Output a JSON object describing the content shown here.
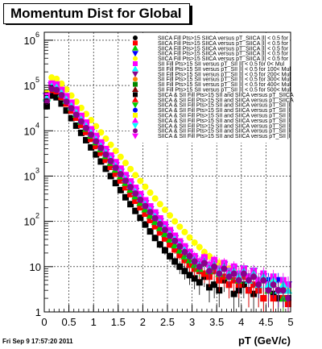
{
  "title": "Momentum Dist for Global",
  "timestamp": "Fri Sep  9 17:57:20 2011",
  "chart_data": {
    "type": "scatter",
    "title": "Momentum Dist for Global",
    "xlabel": "pT (GeV/c)",
    "ylabel": "",
    "xlim": [
      0,
      5
    ],
    "ylim": [
      1,
      1500000
    ],
    "y_scale": "log",
    "grid": true,
    "x_ticks": [
      "0",
      "0.5",
      "1",
      "1.5",
      "2",
      "2.5",
      "3",
      "3.5",
      "4",
      "4.5",
      "5"
    ],
    "y_ticks": [
      "1",
      "10",
      "10",
      "10",
      "10",
      "10",
      "10"
    ],
    "y_tick_exponents": [
      "",
      "",
      "2",
      "3",
      "4",
      "5",
      "6"
    ],
    "legend_position": "top-right",
    "legend": [
      {
        "label": "SIICA Fill Pts>15 SIICA versus pT_SIICA |l| < 0.5 for",
        "color": "#000000",
        "marker": "circle"
      },
      {
        "label": "SIICA Fill Pts>15 SIICA versus pT_SIICA |l| < 0.5 for",
        "color": "#ff0000",
        "marker": "square"
      },
      {
        "label": "SIICA Fill Pts>15 SIICA versus pT_SIICA |l| < 0.5 for",
        "color": "#00cc00",
        "marker": "triangle-up"
      },
      {
        "label": "SIICA Fill Pts>15 SIICA versus pT_SIICA |l| < 0.5 for",
        "color": "#0000ff",
        "marker": "triangle-down"
      },
      {
        "label": "SIICA Fill Pts>15 SIICA versus pT_SIICA |l| < 0.5 for",
        "color": "#ffff00",
        "marker": "circle"
      },
      {
        "label": "SII Fill Pts>15 SII versus pT_SII |l| < 0.5 for 0< Mul",
        "color": "#ff00ff",
        "marker": "square"
      },
      {
        "label": "SII Fill Pts>15 SII versus pT_SII |l| < 0.5 for 100< Mul",
        "color": "#00ffff",
        "marker": "triangle-up"
      },
      {
        "label": "SII Fill Pts>15 SII versus pT_SII |l| < 0.5 for 200< Mul",
        "color": "#8b008b",
        "marker": "triangle-down"
      },
      {
        "label": "SII Fill Pts>15 SII versus pT_SII |l| < 0.5 for 300< Mul",
        "color": "#ff8800",
        "marker": "circle"
      },
      {
        "label": "SII Fill Pts>15 SII versus pT_SII |l| < 0.5 for 400< Mul",
        "color": "#008800",
        "marker": "square"
      },
      {
        "label": "SII Fill Pts>15 SII versus pT_SII |l| < 0.5 for 500< Mul",
        "color": "#880000",
        "marker": "triangle-up"
      },
      {
        "label": "SIICA & SII Fill Pts>15 SII and SIICA versus pT_SIICA",
        "color": "#000000",
        "marker": "square"
      },
      {
        "label": "SIICA & SII Fill Pts>15 SII and SIICA versus pT_SIICA",
        "color": "#ff0000",
        "marker": "triangle-up"
      },
      {
        "label": "SIICA & SII Fill Pts>15 SII and SIICA versus pT_SII |l|",
        "color": "#00cc00",
        "marker": "triangle-down"
      },
      {
        "label": "SIICA & SII Fill Pts>15 SII and SIICA versus pT_SII |l|",
        "color": "#0000ff",
        "marker": "circle"
      },
      {
        "label": "SIICA & SII Fill Pts>15 SII and SIICA versus pT_SII |l|",
        "color": "#ffff00",
        "marker": "square"
      },
      {
        "label": "SIICA & SII Fill Pts>15 SII and SIICA versus pT_SII |l|",
        "color": "#ff00ff",
        "marker": "triangle-up"
      },
      {
        "label": "SIICA & SII Fill Pts>15 SII and SIICA versus pT_SII |l|",
        "color": "#00ffff",
        "marker": "triangle-down"
      },
      {
        "label": "SIICA & SII Fill Pts>15 SII and SIICA versus pT_SII |l|",
        "color": "#8b008b",
        "marker": "circle"
      },
      {
        "label": "SIICA & SII Fill Pts>15 SII and SIICA versus pT_SII |l|",
        "color": "#ff00ff",
        "marker": "triangle-down"
      }
    ],
    "series": [
      {
        "color": "#000000",
        "marker": "square",
        "x": [
          0.05,
          0.15,
          0.25,
          0.35,
          0.45,
          0.55,
          0.65,
          0.75,
          0.85,
          0.95,
          1.05,
          1.15,
          1.25,
          1.35,
          1.45,
          1.55,
          1.65,
          1.75,
          1.85,
          1.95,
          2.05,
          2.15,
          2.25,
          2.35,
          2.45,
          2.55,
          2.65,
          2.75,
          2.85,
          2.95,
          3.05,
          3.15,
          3.25,
          3.35,
          3.45,
          3.55,
          3.65,
          3.75,
          3.85,
          3.95,
          4.05,
          4.15,
          4.25,
          4.35,
          4.45,
          4.55,
          4.65,
          4.75,
          4.85,
          4.95
        ],
        "y": [
          35000,
          60000,
          55000,
          40000,
          28000,
          19000,
          13000,
          9000,
          6200,
          4300,
          3000,
          2100,
          1450,
          1000,
          700,
          490,
          340,
          240,
          170,
          120,
          85,
          60,
          43,
          31,
          23,
          17,
          13,
          10,
          8,
          6.5,
          5.5,
          4.5,
          6,
          3.5,
          4,
          3,
          5,
          4,
          2.5,
          3,
          4,
          3,
          2.5,
          3,
          2,
          3,
          2.5,
          2,
          3,
          2
        ]
      },
      {
        "color": "#ff0000",
        "marker": "square",
        "x": [
          0.05,
          0.15,
          0.25,
          0.35,
          0.45,
          0.55,
          0.65,
          0.75,
          0.85,
          0.95,
          1.05,
          1.15,
          1.25,
          1.35,
          1.45,
          1.55,
          1.65,
          1.75,
          1.85,
          1.95,
          2.05,
          2.15,
          2.25,
          2.35,
          2.45,
          2.55,
          2.65,
          2.75,
          2.85,
          2.95,
          3.05,
          3.15,
          3.25,
          3.35,
          3.45,
          3.55,
          3.65,
          3.75,
          3.85,
          3.95,
          4.05,
          4.15,
          4.25,
          4.35,
          4.45,
          4.55,
          4.65,
          4.75,
          4.85,
          4.95
        ],
        "y": [
          50000,
          80000,
          75000,
          56000,
          40000,
          28000,
          19500,
          13500,
          9400,
          6600,
          4600,
          3250,
          2280,
          1600,
          1130,
          800,
          565,
          400,
          285,
          205,
          148,
          107,
          78,
          57,
          42,
          31,
          24,
          18,
          14,
          11,
          9,
          8,
          7,
          6,
          8,
          5,
          6,
          4,
          5,
          4,
          6,
          3,
          4,
          3,
          2,
          4,
          2,
          3,
          2,
          1.5
        ]
      },
      {
        "color": "#00cc00",
        "marker": "triangle-up",
        "x": [
          0.05,
          0.15,
          0.25,
          0.35,
          0.45,
          0.55,
          0.65,
          0.75,
          0.85,
          0.95,
          1.05,
          1.15,
          1.25,
          1.35,
          1.45,
          1.55,
          1.65,
          1.75,
          1.85,
          1.95,
          2.05,
          2.15,
          2.25,
          2.35,
          2.45,
          2.55,
          2.65,
          2.75,
          2.85,
          2.95,
          3.05,
          3.15,
          3.25,
          3.35,
          3.45,
          3.55,
          3.65,
          3.75,
          3.85,
          3.95,
          4.05,
          4.15,
          4.25,
          4.35,
          4.45,
          4.55,
          4.65,
          4.75,
          4.85,
          4.95
        ],
        "y": [
          55000,
          90000,
          85000,
          64000,
          46000,
          32500,
          23000,
          16000,
          11200,
          7900,
          5600,
          3950,
          2800,
          1980,
          1400,
          1000,
          710,
          505,
          360,
          258,
          186,
          135,
          98,
          72,
          53,
          40,
          30,
          23,
          17,
          14,
          11,
          9,
          12,
          8,
          10,
          7,
          9,
          6,
          8,
          5,
          7,
          5,
          6,
          4,
          5,
          3,
          4,
          3,
          2,
          3
        ]
      },
      {
        "color": "#0000ff",
        "marker": "triangle-down",
        "x": [
          0.05,
          0.15,
          0.25,
          0.35,
          0.45,
          0.55,
          0.65,
          0.75,
          0.85,
          0.95,
          1.05,
          1.15,
          1.25,
          1.35,
          1.45,
          1.55,
          1.65,
          1.75,
          1.85,
          1.95,
          2.05,
          2.15,
          2.25,
          2.35,
          2.45,
          2.55,
          2.65,
          2.75,
          2.85,
          2.95,
          3.05,
          3.15,
          3.25,
          3.35,
          3.45,
          3.55,
          3.65,
          3.75,
          3.85,
          3.95,
          4.05,
          4.15,
          4.25,
          4.35,
          4.45,
          4.55,
          4.65,
          4.75,
          4.85,
          4.95
        ],
        "y": [
          58000,
          100000,
          95000,
          72000,
          52000,
          37000,
          26500,
          18700,
          13200,
          9300,
          6600,
          4700,
          3350,
          2390,
          1710,
          1230,
          885,
          640,
          465,
          340,
          248,
          182,
          134,
          99,
          74,
          55,
          42,
          32,
          25,
          19,
          15,
          12,
          14,
          10,
          12,
          9,
          11,
          8,
          9,
          7,
          9,
          6,
          8,
          5,
          6,
          5,
          4,
          5,
          3,
          4
        ]
      },
      {
        "color": "#ffff00",
        "marker": "circle",
        "x": [
          0.05,
          0.15,
          0.25,
          0.35,
          0.45,
          0.55,
          0.65,
          0.75,
          0.85,
          0.95,
          1.05,
          1.15,
          1.25,
          1.35,
          1.45,
          1.55,
          1.65,
          1.75,
          1.85,
          1.95,
          2.05,
          2.15,
          2.25,
          2.35,
          2.45,
          2.55,
          2.65,
          2.75,
          2.85,
          2.95,
          3.05,
          3.15,
          3.25,
          3.35,
          3.45,
          3.55,
          3.65,
          3.75,
          3.85,
          3.95,
          4.05,
          4.15,
          4.25,
          4.35,
          4.45,
          4.55,
          4.65,
          4.75,
          4.85,
          4.95
        ],
        "y": [
          70000,
          150000,
          140000,
          110000,
          82000,
          60000,
          44000,
          32000,
          23500,
          17200,
          12600,
          9200,
          6700,
          4900,
          3600,
          2650,
          1950,
          1430,
          1050,
          780,
          580,
          430,
          320,
          240,
          180,
          135,
          100,
          76,
          58,
          44,
          34,
          27,
          21,
          17,
          14,
          12,
          10,
          9,
          8,
          7,
          9,
          6,
          7,
          5,
          6,
          4,
          5,
          3,
          4,
          3
        ]
      },
      {
        "color": "#ff00ff",
        "marker": "square",
        "x": [
          0.05,
          0.15,
          0.25,
          0.35,
          0.45,
          0.55,
          0.65,
          0.75,
          0.85,
          0.95,
          1.05,
          1.15,
          1.25,
          1.35,
          1.45,
          1.55,
          1.65,
          1.75,
          1.85,
          1.95,
          2.05,
          2.15,
          2.25,
          2.35,
          2.45,
          2.55,
          2.65,
          2.75,
          2.85,
          2.95,
          3.05,
          3.15,
          3.25,
          3.35,
          3.45,
          3.55,
          3.65,
          3.75,
          3.85,
          3.95,
          4.05,
          4.15,
          4.25,
          4.35,
          4.45,
          4.55,
          4.65,
          4.75,
          4.85,
          4.95
        ],
        "y": [
          60000,
          110000,
          105000,
          80000,
          58000,
          41500,
          29800,
          21300,
          15200,
          10800,
          7700,
          5500,
          3950,
          2830,
          2030,
          1460,
          1050,
          760,
          550,
          400,
          292,
          214,
          157,
          116,
          86,
          64,
          48,
          36,
          28,
          21,
          17,
          13,
          16,
          11,
          14,
          9,
          12,
          8,
          10,
          7,
          9,
          6,
          8,
          5,
          7,
          4,
          6,
          3,
          5,
          4
        ]
      },
      {
        "color": "#00ffff",
        "marker": "triangle-up",
        "x": [
          0.05,
          0.15,
          0.25,
          0.35,
          0.45,
          0.55,
          0.65,
          0.75,
          0.85,
          0.95,
          1.05,
          1.15,
          1.25,
          1.35,
          1.45,
          1.55,
          1.65,
          1.75,
          1.85,
          1.95,
          2.05,
          2.15,
          2.25,
          2.35,
          2.45,
          2.55,
          2.65,
          2.75,
          2.85,
          2.95,
          3.05,
          3.15,
          3.25,
          3.35,
          3.45,
          3.55,
          3.65,
          3.75,
          3.85,
          3.95,
          4.05,
          4.15,
          4.25,
          4.35,
          4.45,
          4.55,
          4.65,
          4.75,
          4.85,
          4.95
        ],
        "y": [
          52000,
          95000,
          90000,
          68000,
          49000,
          35000,
          25000,
          17800,
          12700,
          9000,
          6400,
          4560,
          3250,
          2320,
          1660,
          1190,
          855,
          615,
          445,
          323,
          236,
          173,
          127,
          94,
          70,
          52,
          40,
          30,
          23,
          18,
          14,
          11,
          13,
          9,
          11,
          8,
          10,
          7,
          8,
          6,
          8,
          5,
          7,
          4,
          6,
          4,
          5,
          3,
          4,
          3
        ]
      },
      {
        "color": "#8b008b",
        "marker": "circle",
        "x": [
          0.05,
          0.15,
          0.25,
          0.35,
          0.45,
          0.55,
          0.65,
          0.75,
          0.85,
          0.95,
          1.05,
          1.15,
          1.25,
          1.35,
          1.45,
          1.55,
          1.65,
          1.75,
          1.85,
          1.95,
          2.05,
          2.15,
          2.25,
          2.35,
          2.45,
          2.55,
          2.65,
          2.75,
          2.85,
          2.95,
          3.05,
          3.15,
          3.25,
          3.35,
          3.45,
          3.55,
          3.65,
          3.75,
          3.85,
          3.95,
          4.05,
          4.15,
          4.25,
          4.35,
          4.45,
          4.55,
          4.65,
          4.75,
          4.85,
          4.95
        ],
        "y": [
          45000,
          85000,
          80000,
          61000,
          44000,
          31500,
          22600,
          16100,
          11500,
          8200,
          5850,
          4180,
          2990,
          2140,
          1530,
          1100,
          790,
          570,
          412,
          299,
          218,
          160,
          117,
          87,
          65,
          48,
          37,
          28,
          21,
          17,
          13,
          10,
          12,
          8,
          10,
          7,
          9,
          6,
          7,
          5,
          7,
          5,
          6,
          4,
          5,
          3,
          4,
          3,
          3,
          2
        ]
      }
    ]
  }
}
